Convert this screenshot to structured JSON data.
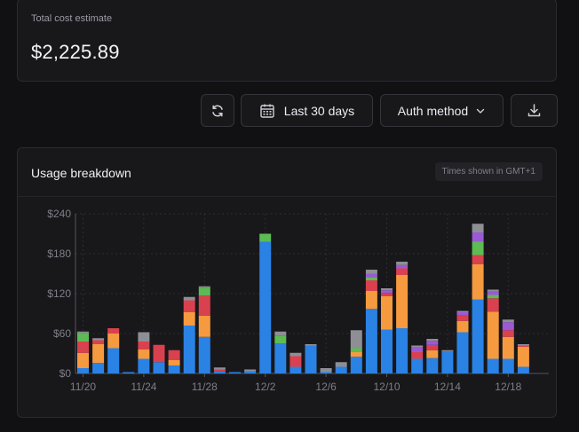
{
  "cost": {
    "label": "Total cost estimate",
    "value": "$2,225.89"
  },
  "controls": {
    "refresh_icon": "refresh-icon",
    "date_range_label": "Last 30 days",
    "date_range_icon": "calendar-icon",
    "auth_label": "Auth method",
    "auth_icon": "chevron-down-icon",
    "download_icon": "download-icon"
  },
  "usage": {
    "title": "Usage breakdown",
    "timezone_note": "Times shown in GMT+1"
  },
  "colors": {
    "blue": "#2a82e4",
    "orange": "#f59a3f",
    "red": "#d9414f",
    "green": "#5dbb54",
    "gray": "#8e8e95",
    "purple": "#9b59d6"
  },
  "chart_data": {
    "type": "bar",
    "stacked": true,
    "ylim": [
      0,
      240
    ],
    "yticks": [
      "$0",
      "$60",
      "$120",
      "$180",
      "$240"
    ],
    "ytick_values": [
      0,
      60,
      120,
      180,
      240
    ],
    "xtick_labels": [
      "11/20",
      "11/24",
      "11/28",
      "12/2",
      "12/6",
      "12/10",
      "12/14",
      "12/18"
    ],
    "xtick_indices": [
      0,
      4,
      8,
      12,
      16,
      20,
      24,
      28
    ],
    "categories": [
      "11/20",
      "11/21",
      "11/22",
      "11/23",
      "11/24",
      "11/25",
      "11/26",
      "11/27",
      "11/28",
      "11/29",
      "11/30",
      "12/1",
      "12/2",
      "12/3",
      "12/4",
      "12/5",
      "12/6",
      "12/7",
      "12/8",
      "12/9",
      "12/10",
      "12/11",
      "12/12",
      "12/13",
      "12/14",
      "12/15",
      "12/16",
      "12/17",
      "12/18",
      "12/19",
      "12/20"
    ],
    "series": [
      {
        "name": "blue",
        "color": "#2a82e4",
        "values": [
          8,
          16,
          38,
          2,
          22,
          17,
          12,
          72,
          55,
          3,
          2,
          3,
          198,
          45,
          10,
          42,
          2,
          10,
          25,
          97,
          66,
          68,
          22,
          23,
          33,
          62,
          111,
          22,
          22,
          10,
          0
        ]
      },
      {
        "name": "orange",
        "color": "#f59a3f",
        "values": [
          23,
          28,
          22,
          0,
          14,
          0,
          8,
          20,
          32,
          0,
          0,
          0,
          0,
          0,
          0,
          0,
          0,
          0,
          7,
          27,
          50,
          80,
          0,
          12,
          0,
          17,
          53,
          71,
          33,
          30,
          0
        ]
      },
      {
        "name": "red",
        "color": "#d9414f",
        "values": [
          17,
          6,
          8,
          0,
          12,
          26,
          15,
          18,
          30,
          3,
          0,
          0,
          0,
          0,
          16,
          0,
          0,
          0,
          0,
          16,
          5,
          10,
          10,
          8,
          0,
          8,
          14,
          20,
          10,
          2,
          0
        ]
      },
      {
        "name": "green",
        "color": "#5dbb54",
        "values": [
          13,
          0,
          0,
          0,
          0,
          0,
          0,
          0,
          12,
          0,
          0,
          0,
          12,
          12,
          0,
          0,
          0,
          0,
          6,
          5,
          0,
          0,
          0,
          0,
          0,
          0,
          20,
          5,
          0,
          0,
          0
        ]
      },
      {
        "name": "purple",
        "color": "#9b59d6",
        "values": [
          0,
          0,
          0,
          0,
          0,
          0,
          0,
          0,
          0,
          0,
          0,
          0,
          0,
          0,
          0,
          0,
          0,
          0,
          0,
          5,
          4,
          5,
          8,
          6,
          0,
          5,
          14,
          5,
          12,
          0,
          0
        ]
      },
      {
        "name": "gray",
        "color": "#8e8e95",
        "values": [
          2,
          3,
          0,
          0,
          14,
          0,
          0,
          5,
          2,
          3,
          0,
          3,
          0,
          6,
          5,
          2,
          6,
          7,
          27,
          6,
          3,
          5,
          2,
          3,
          2,
          2,
          13,
          3,
          4,
          2,
          0
        ]
      }
    ]
  }
}
